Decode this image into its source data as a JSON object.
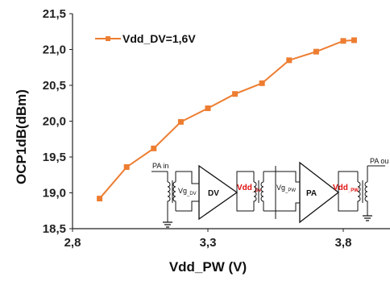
{
  "chart_data": {
    "type": "line",
    "xlabel": "Vdd_PW (V)",
    "ylabel": "OCP1dB(dBm)",
    "xlim": [
      2.8,
      4.0
    ],
    "ylim": [
      18.5,
      21.5
    ],
    "x_ticks": [
      "2,8",
      "3,3",
      "3,8"
    ],
    "y_ticks": [
      "18,5",
      "19,0",
      "19,5",
      "20,0",
      "20,5",
      "21,0",
      "21,5"
    ],
    "grid": false,
    "legend_position": "top-left",
    "series": [
      {
        "name": "Vdd_DV=1,6V",
        "color": "#ed7d31",
        "marker": "square",
        "x": [
          2.9,
          3.0,
          3.1,
          3.2,
          3.3,
          3.4,
          3.5,
          3.6,
          3.7,
          3.8,
          3.84
        ],
        "y": [
          18.92,
          19.36,
          19.62,
          19.99,
          20.18,
          20.38,
          20.53,
          20.85,
          20.97,
          21.12,
          21.13
        ]
      }
    ]
  },
  "inset": {
    "pa_in_label": "PA in",
    "pa_out_label": "PA ou",
    "vg_dv_main": "Vg",
    "vg_dv_sub": "_DV",
    "dv_label": "DV",
    "vdd_dv_main": "Vdd",
    "vdd_dv_sub": "_DV",
    "vg_pw_main": "Vg",
    "vg_pw_sub": "_PW",
    "pa_label": "PA",
    "vdd_pw_main": "Vdd",
    "vdd_pw_sub": "_PW"
  }
}
